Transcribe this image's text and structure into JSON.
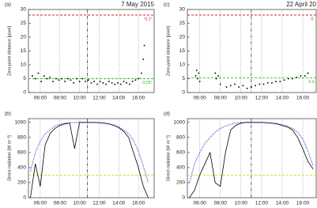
{
  "chart_data": [
    {
      "type": "scatter",
      "label": "(a)",
      "title": "7 May 2015",
      "ylabel": "Zero-point distance [pixel]",
      "x": [
        5.2,
        5.5,
        5.8,
        6.1,
        6.4,
        6.7,
        7,
        7.3,
        7.6,
        7.9,
        8.2,
        8.5,
        8.8,
        9.1,
        9.4,
        9.7,
        10,
        10.3,
        10.6,
        10.9,
        11.2,
        11.5,
        11.8,
        12.1,
        12.4,
        12.7,
        13,
        13.3,
        13.6,
        13.9,
        14.2,
        14.5,
        14.8,
        15.1,
        15.4,
        15.7,
        16,
        16.3,
        16.5,
        16.6
      ],
      "values": [
        6,
        5,
        7,
        4,
        6,
        5,
        5.5,
        4,
        5,
        4.5,
        5,
        4,
        5,
        4.5,
        3.5,
        5,
        4,
        5,
        4,
        4.5,
        3.5,
        4,
        3,
        4,
        3.5,
        3,
        4,
        3.5,
        3,
        3.5,
        3,
        4,
        3.5,
        3,
        4,
        4.5,
        5,
        7,
        12,
        17
      ],
      "color": "#000000",
      "xlim": [
        4.8,
        17.6
      ],
      "ylim": [
        0,
        30
      ],
      "xticks": [
        {
          "value": 6,
          "label": "06:00"
        },
        {
          "value": 8,
          "label": "08:00"
        },
        {
          "value": 10,
          "label": "10:00"
        },
        {
          "value": 12,
          "label": "12:00"
        },
        {
          "value": 14,
          "label": "14:00"
        },
        {
          "value": 16,
          "label": "16:00"
        }
      ],
      "yticks": [
        0,
        5,
        10,
        15,
        20,
        25,
        30
      ],
      "xgrid": true,
      "vline": 10.8,
      "hlines": [
        {
          "value": 28,
          "label": "0.1°",
          "color": "#dd2222"
        },
        {
          "value": 5,
          "label": "0.05°",
          "color": "#33bb33"
        }
      ]
    },
    {
      "type": "scatter",
      "label": "(c)",
      "title": "22 April 20",
      "ylabel": "Zero-point distance [pixel]",
      "x": [
        5.6,
        5.7,
        5.8,
        5.9,
        6.0,
        7.5,
        7.6,
        7.8,
        8.0,
        8.6,
        9.0,
        9.4,
        9.8,
        10.2,
        10.6,
        11,
        11.4,
        11.8,
        12.2,
        12.6,
        13,
        13.4,
        13.8,
        14.2,
        14.6,
        15,
        15.4,
        15.8,
        16.2,
        16.5
      ],
      "values": [
        6,
        8,
        5,
        7,
        4,
        7,
        5,
        6,
        3,
        2,
        2.5,
        3,
        2,
        2.5,
        1.5,
        2,
        2.5,
        3,
        3,
        3.5,
        3.5,
        4,
        4,
        4.5,
        5,
        5,
        5.5,
        6,
        6,
        7
      ],
      "color": "#000000",
      "xlim": [
        4.8,
        17.3
      ],
      "ylim": [
        0,
        30
      ],
      "xticks": [
        {
          "value": 6,
          "label": "06:00"
        },
        {
          "value": 8,
          "label": "08:00"
        },
        {
          "value": 10,
          "label": "10:00"
        },
        {
          "value": 12,
          "label": "12:00"
        },
        {
          "value": 14,
          "label": "14:00"
        },
        {
          "value": 16,
          "label": "16:00"
        }
      ],
      "yticks": [
        0,
        5,
        10,
        15,
        20,
        25,
        30
      ],
      "xgrid": true,
      "vline": 11,
      "hlines": [
        {
          "value": 28,
          "label": "0.",
          "color": "#dd2222"
        },
        {
          "value": 5.3,
          "label": "0.0",
          "color": "#33bb33"
        }
      ]
    },
    {
      "type": "line",
      "label": "(b)",
      "ylabel": "Direct radiation [W m⁻²]",
      "x": [
        5,
        5.5,
        6,
        6.5,
        7,
        7.5,
        8,
        8.5,
        9,
        9.5,
        10,
        10.5,
        11,
        11.5,
        12,
        12.5,
        13,
        13.5,
        14,
        14.5,
        15,
        15.5,
        16,
        16.5,
        17
      ],
      "series": [
        {
          "color": "#000000",
          "values": [
            0,
            450,
            150,
            700,
            850,
            920,
            960,
            980,
            990,
            650,
            1000,
            1000,
            1000,
            1000,
            995,
            990,
            980,
            960,
            930,
            880,
            800,
            600,
            400,
            150,
            0
          ]
        },
        {
          "color": "#3344cc",
          "style": "dotted",
          "values": [
            350,
            600,
            750,
            850,
            900,
            950,
            975,
            990,
            995,
            1000,
            1000,
            1000,
            1000,
            1000,
            998,
            990,
            980,
            965,
            940,
            900,
            850,
            760,
            620,
            420,
            200
          ]
        }
      ],
      "xlim": [
        4.8,
        17.6
      ],
      "ylim": [
        0,
        1050
      ],
      "xticks": [
        {
          "value": 6,
          "label": "06:00"
        },
        {
          "value": 8,
          "label": "08:00"
        },
        {
          "value": 10,
          "label": "10:00"
        },
        {
          "value": 12,
          "label": "12:00"
        },
        {
          "value": 14,
          "label": "14:00"
        },
        {
          "value": 16,
          "label": "16:00"
        }
      ],
      "yticks": [
        0,
        200,
        400,
        600,
        800,
        1000
      ],
      "xgrid": true,
      "vline": 10.8,
      "hlines": [
        {
          "value": 300,
          "color": "#ddcc22"
        }
      ]
    },
    {
      "type": "line",
      "label": "(d)",
      "ylabel": "Direct radiation [W m⁻²]",
      "x": [
        5,
        5.5,
        6,
        6.5,
        7,
        7.5,
        8,
        8.5,
        9,
        9.5,
        10,
        10.5,
        11,
        11.5,
        12,
        12.5,
        13,
        13.5,
        14,
        14.5,
        15,
        15.5,
        16,
        16.5,
        17
      ],
      "series": [
        {
          "color": "#000000",
          "values": [
            0,
            100,
            300,
            450,
            600,
            200,
            150,
            600,
            900,
            960,
            990,
            1000,
            1000,
            1000,
            1000,
            995,
            990,
            980,
            960,
            940,
            900,
            800,
            650,
            480,
            380
          ]
        },
        {
          "color": "#3344cc",
          "style": "dotted",
          "values": [
            200,
            450,
            600,
            720,
            800,
            870,
            920,
            950,
            975,
            990,
            1000,
            1000,
            1000,
            1000,
            1000,
            995,
            990,
            985,
            970,
            950,
            920,
            870,
            780,
            620,
            420
          ]
        }
      ],
      "xlim": [
        4.8,
        17.3
      ],
      "ylim": [
        0,
        1050
      ],
      "xticks": [
        {
          "value": 6,
          "label": "06:00"
        },
        {
          "value": 8,
          "label": "08:00"
        },
        {
          "value": 10,
          "label": "10:00"
        },
        {
          "value": 12,
          "label": "12:00"
        },
        {
          "value": 14,
          "label": "14:00"
        },
        {
          "value": 16,
          "label": "16:00"
        }
      ],
      "yticks": [
        0,
        200,
        400,
        600,
        800,
        1000
      ],
      "xgrid": true,
      "vline": 11,
      "hlines": [
        {
          "value": 300,
          "color": "#ddcc22"
        }
      ]
    }
  ]
}
